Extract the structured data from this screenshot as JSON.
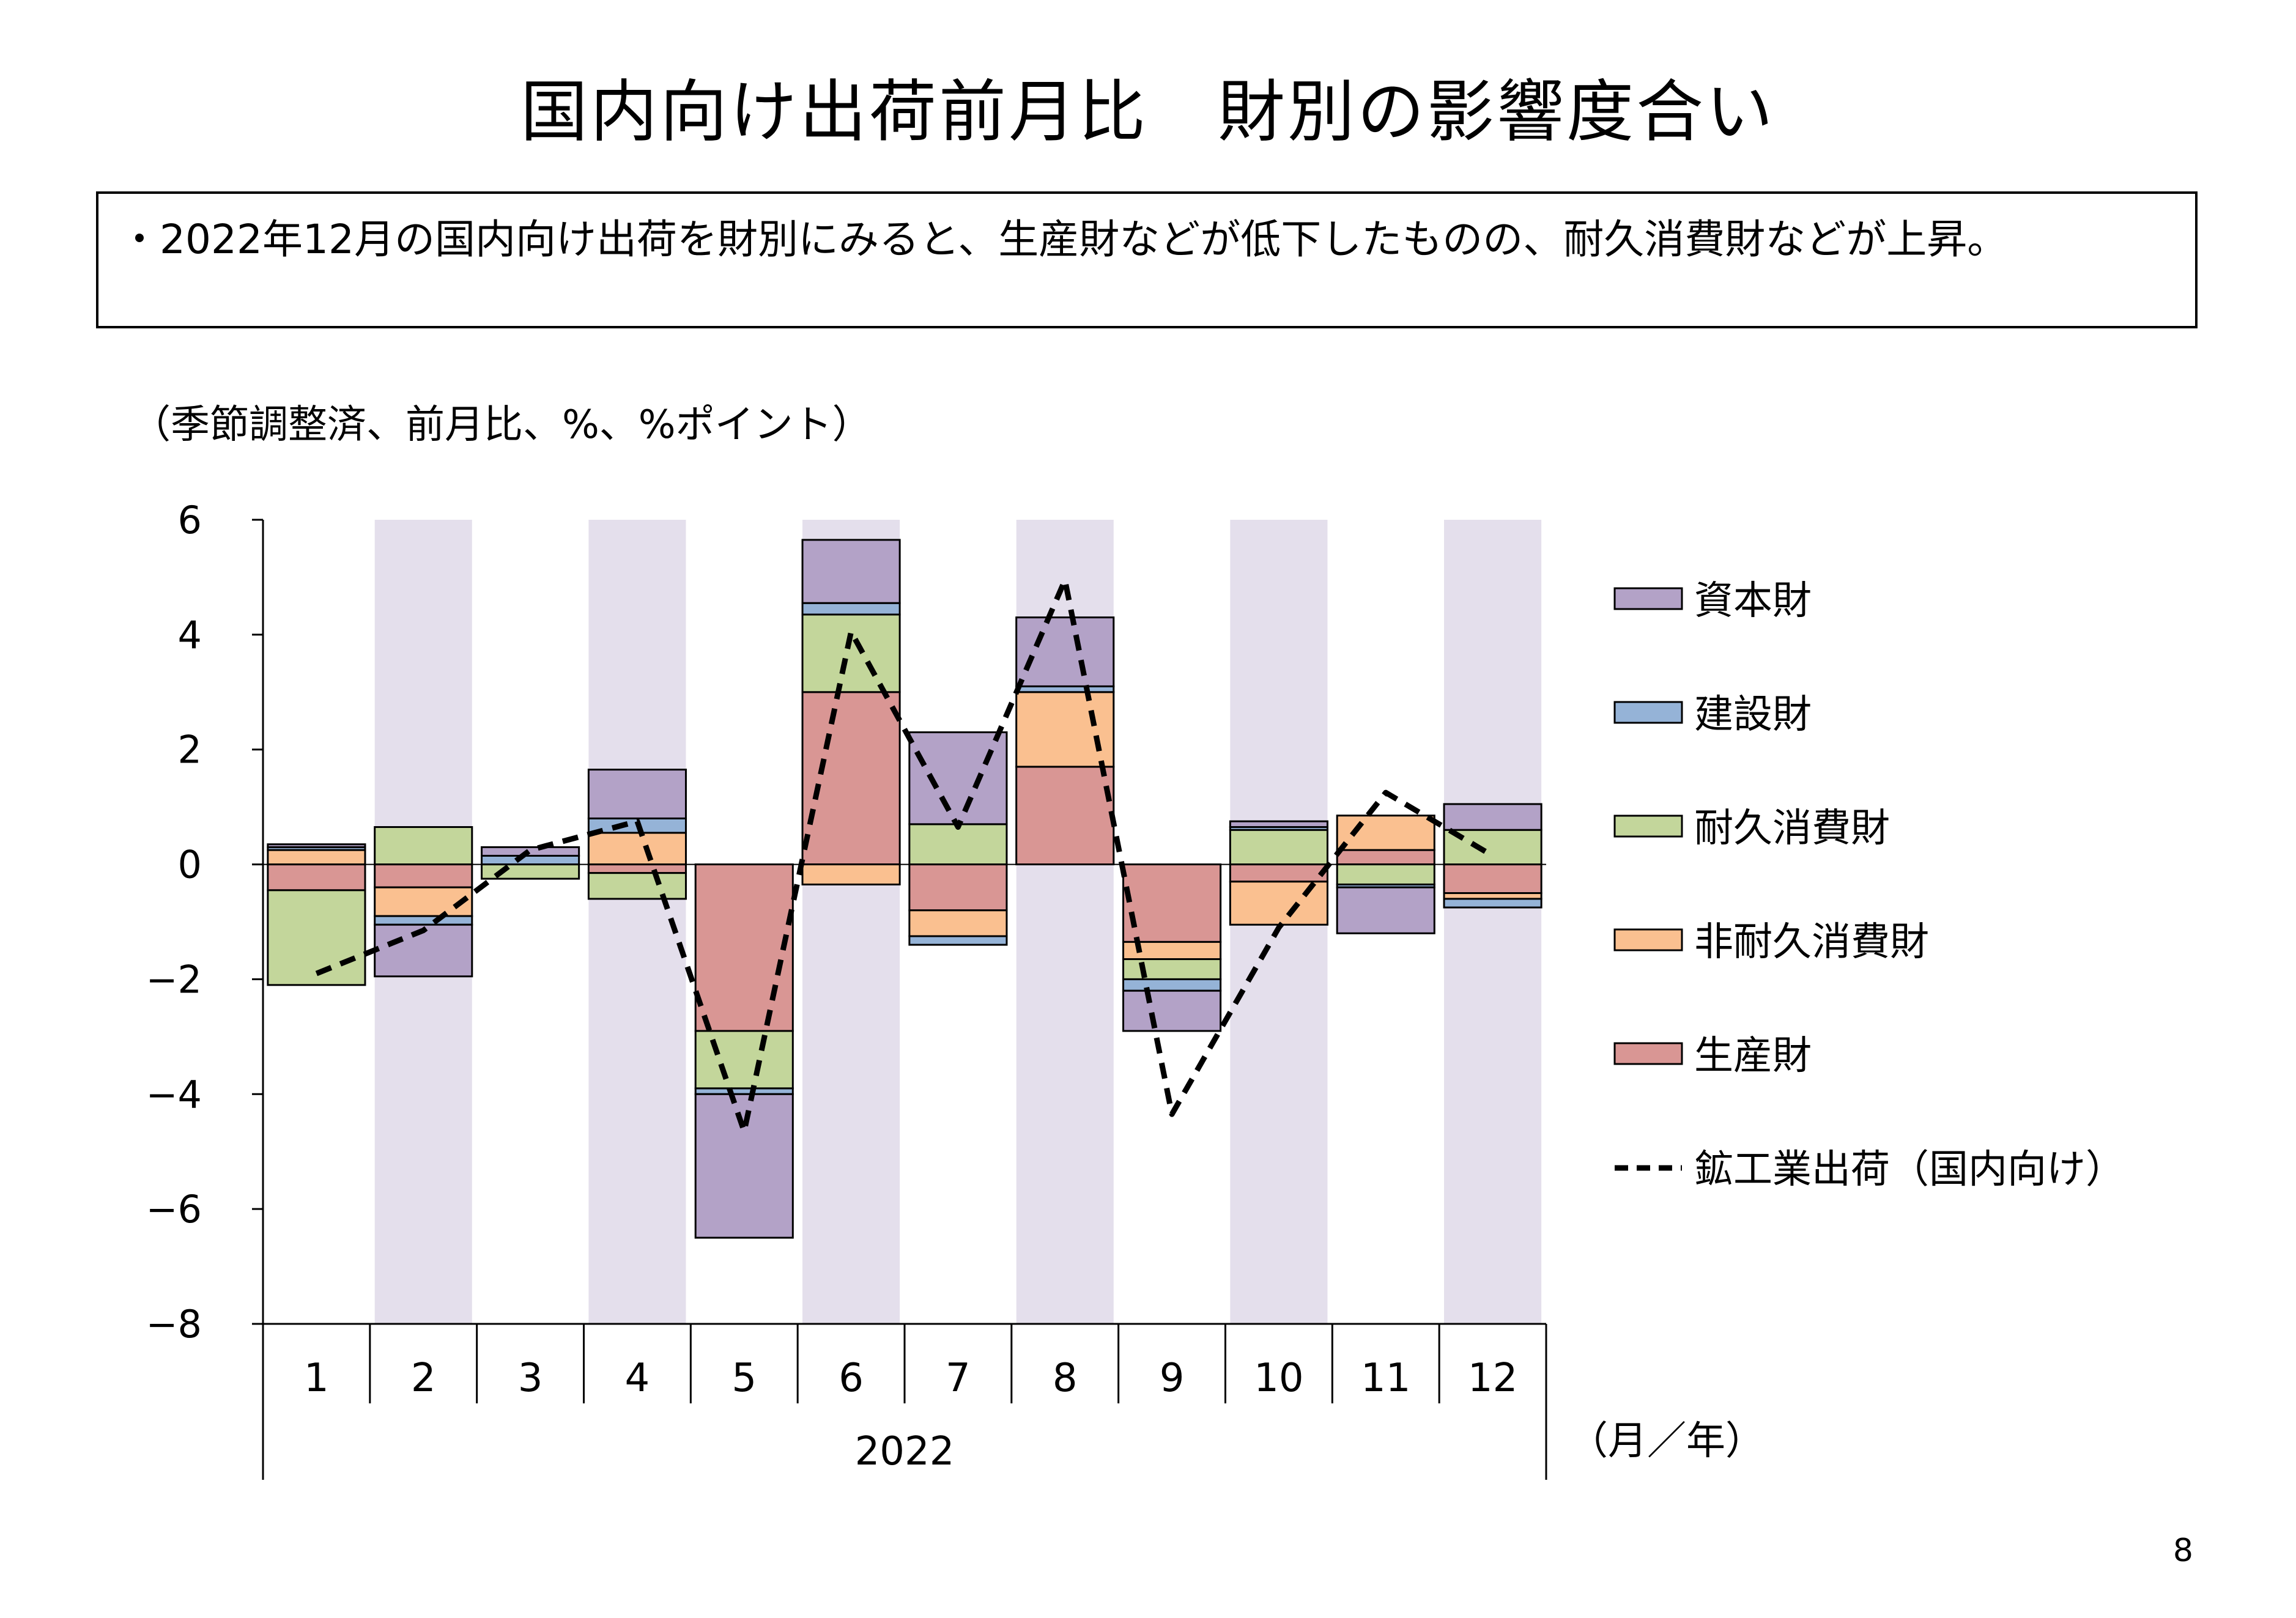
{
  "title": "国内向け出荷前月比　財別の影響度合い",
  "summary": "・2022年12月の国内向け出荷を財別にみると、生産財などが低下したものの、耐久消費財などが上昇。",
  "unit_note": "（季節調整済、前月比、%、%ポイント）",
  "page_number": "8",
  "chart_data": {
    "type": "bar",
    "stacked": true,
    "categories": [
      "1",
      "2",
      "3",
      "4",
      "5",
      "6",
      "7",
      "8",
      "9",
      "10",
      "11",
      "12"
    ],
    "year_label": "2022",
    "x_unit_label": "（月／年）",
    "ylim": [
      -8,
      6
    ],
    "yticks": [
      6,
      4,
      2,
      0,
      -2,
      -4,
      -6,
      -8
    ],
    "ytick_labels": [
      "6",
      "4",
      "2",
      "0",
      "−2",
      "−4",
      "−6",
      "−8"
    ],
    "shaded_months": [
      "2",
      "4",
      "6",
      "8",
      "10",
      "12"
    ],
    "legend_position": "right",
    "series": [
      {
        "name": "生産財",
        "color": "#d99694",
        "values": [
          -0.45,
          -0.4,
          0.0,
          -0.15,
          -2.9,
          3.0,
          -0.8,
          1.7,
          -1.35,
          -0.3,
          0.25,
          -0.5
        ]
      },
      {
        "name": "非耐久消費財",
        "color": "#fac090",
        "values": [
          0.25,
          -0.5,
          0.0,
          0.55,
          0.0,
          -0.35,
          -0.45,
          1.3,
          -0.3,
          -0.75,
          0.6,
          -0.1
        ]
      },
      {
        "name": "耐久消費財",
        "color": "#c3d69b",
        "values": [
          -1.65,
          0.65,
          -0.25,
          -0.45,
          -1.0,
          1.35,
          0.7,
          0.0,
          -0.35,
          0.6,
          -0.35,
          0.6
        ]
      },
      {
        "name": "建設財",
        "color": "#95b3d7",
        "values": [
          0.05,
          -0.15,
          0.15,
          0.25,
          -0.1,
          0.2,
          -0.15,
          0.1,
          -0.2,
          0.05,
          -0.05,
          -0.15
        ]
      },
      {
        "name": "資本財",
        "color": "#b3a2c7",
        "values": [
          0.05,
          -0.9,
          0.15,
          0.85,
          -2.5,
          1.1,
          1.6,
          1.2,
          -0.7,
          0.1,
          -0.8,
          0.45
        ]
      }
    ],
    "line": {
      "name": "鉱工業出荷（国内向け）",
      "color": "#000000",
      "values": [
        -1.9,
        -1.15,
        0.25,
        0.75,
        -4.65,
        4.05,
        0.65,
        4.95,
        -4.35,
        -1.1,
        1.25,
        0.15
      ]
    }
  }
}
